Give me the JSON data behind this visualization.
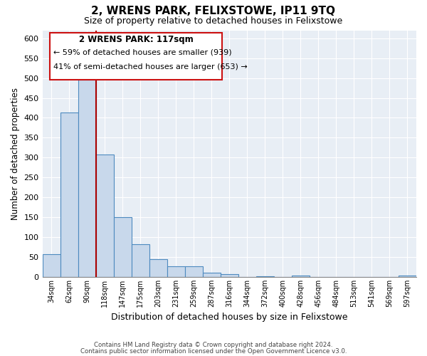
{
  "title": "2, WRENS PARK, FELIXSTOWE, IP11 9TQ",
  "subtitle": "Size of property relative to detached houses in Felixstowe",
  "xlabel": "Distribution of detached houses by size in Felixstowe",
  "ylabel": "Number of detached properties",
  "bar_color": "#c8d8eb",
  "bar_edge_color": "#4d8abf",
  "bin_labels": [
    "34sqm",
    "62sqm",
    "90sqm",
    "118sqm",
    "147sqm",
    "175sqm",
    "203sqm",
    "231sqm",
    "259sqm",
    "287sqm",
    "316sqm",
    "344sqm",
    "372sqm",
    "400sqm",
    "428sqm",
    "456sqm",
    "484sqm",
    "513sqm",
    "541sqm",
    "569sqm",
    "597sqm"
  ],
  "bar_heights": [
    57,
    413,
    495,
    307,
    150,
    82,
    45,
    26,
    26,
    10,
    8,
    0,
    2,
    0,
    4,
    0,
    0,
    0,
    0,
    0,
    4
  ],
  "ylim": [
    0,
    620
  ],
  "yticks": [
    0,
    50,
    100,
    150,
    200,
    250,
    300,
    350,
    400,
    450,
    500,
    550,
    600
  ],
  "vline_bin_index": 3,
  "annotation_title": "2 WRENS PARK: 117sqm",
  "annotation_line1": "← 59% of detached houses are smaller (939)",
  "annotation_line2": "41% of semi-detached houses are larger (653) →",
  "vline_color": "#aa0000",
  "footer_line1": "Contains HM Land Registry data © Crown copyright and database right 2024.",
  "footer_line2": "Contains public sector information licensed under the Open Government Licence v3.0.",
  "background_color": "#ffffff",
  "plot_bg_color": "#e8eef5",
  "grid_color": "#ffffff"
}
